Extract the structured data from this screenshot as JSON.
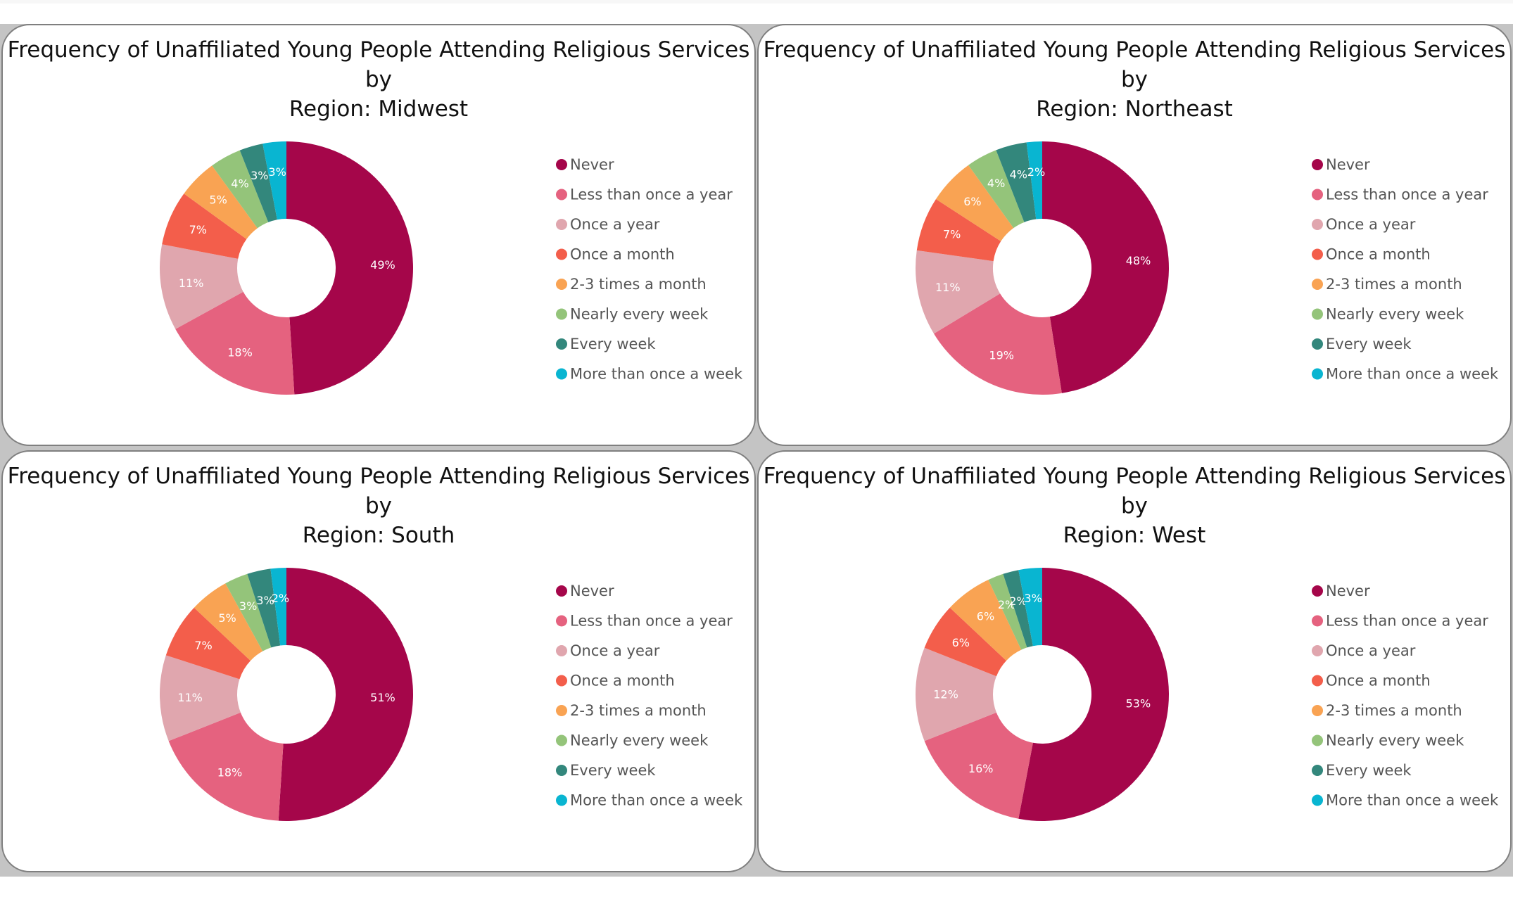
{
  "categories": [
    "Never",
    "Less than once a year",
    "Once a year",
    "Once a month",
    "2-3 times a month",
    "Nearly every week",
    "Every week",
    "More than once a week"
  ],
  "colors": [
    "#a5064a",
    "#e5627f",
    "#e0a6ae",
    "#f35e4b",
    "#f9a353",
    "#94c47a",
    "#33877c",
    "#09b5d1"
  ],
  "chart_data": [
    {
      "type": "pie",
      "title": "Frequency of Unaffiliated Young People Attending Religious Services by Region: Midwest",
      "title_lines": [
        "Frequency of Unaffiliated Young People Attending Religious Services by",
        "Region: Midwest"
      ],
      "values": [
        49,
        18,
        11,
        7,
        5,
        4,
        3,
        3
      ],
      "labels": [
        "49%",
        "18%",
        "11%",
        "7%",
        "5%",
        "4%",
        "3%",
        "3%"
      ],
      "legend": "right"
    },
    {
      "type": "pie",
      "title": "Frequency of Unaffiliated Young People Attending Religious Services by Region: Northeast",
      "title_lines": [
        "Frequency of Unaffiliated Young People Attending Religious Services by",
        "Region: Northeast"
      ],
      "values": [
        48,
        19,
        11,
        7,
        6,
        4,
        4,
        2
      ],
      "labels": [
        "48%",
        "19%",
        "11%",
        "7%",
        "6%",
        "4%",
        "4%",
        "2%"
      ],
      "legend": "right"
    },
    {
      "type": "pie",
      "title": "Frequency of Unaffiliated Young People Attending Religious Services by Region: South",
      "title_lines": [
        "Frequency of Unaffiliated Young People Attending Religious Services by",
        "Region: South"
      ],
      "values": [
        51,
        18,
        11,
        7,
        5,
        3,
        3,
        2
      ],
      "labels": [
        "51%",
        "18%",
        "11%",
        "7%",
        "5%",
        "3%",
        "3%",
        "2%"
      ],
      "legend": "right"
    },
    {
      "type": "pie",
      "title": "Frequency of Unaffiliated Young People Attending Religious Services by Region: West",
      "title_lines": [
        "Frequency of Unaffiliated Young People Attending Religious Services by",
        "Region: West"
      ],
      "values": [
        53,
        16,
        12,
        6,
        6,
        2,
        2,
        3
      ],
      "labels": [
        "53%",
        "16%",
        "12%",
        "6%",
        "6%",
        "2%",
        "2%",
        "3%"
      ],
      "legend": "right"
    }
  ]
}
